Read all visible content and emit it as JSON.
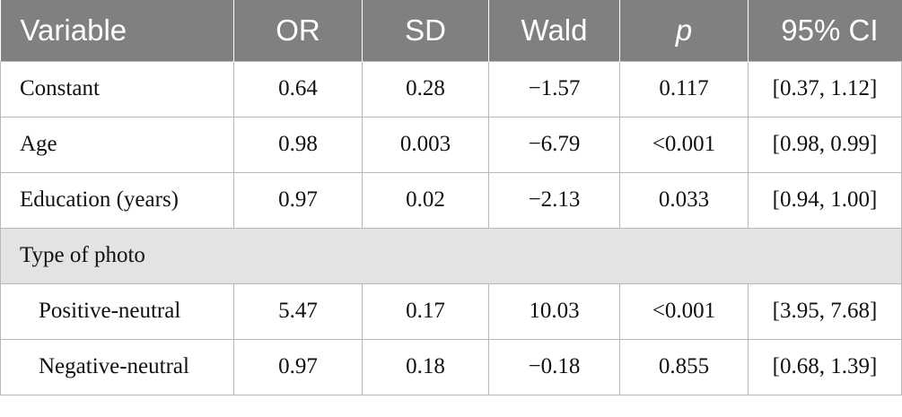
{
  "table": {
    "headers": [
      "Variable",
      "OR",
      "SD",
      "Wald",
      "p",
      "95% CI"
    ],
    "rows": [
      [
        "Constant",
        "0.64",
        "0.28",
        "−1.57",
        "0.117",
        "[0.37, 1.12]"
      ],
      [
        "Age",
        "0.98",
        "0.003",
        "−6.79",
        "<0.001",
        "[0.98, 0.99]"
      ],
      [
        "Education (years)",
        "0.97",
        "0.02",
        "−2.13",
        "0.033",
        "[0.94, 1.00]"
      ]
    ],
    "section_label": "Type of photo",
    "section_rows": [
      [
        "Positive-neutral",
        "5.47",
        "0.17",
        "10.03",
        "<0.001",
        "[3.95, 7.68]"
      ],
      [
        "Negative-neutral",
        "0.97",
        "0.18",
        "−0.18",
        "0.855",
        "[0.68, 1.39]"
      ]
    ]
  }
}
